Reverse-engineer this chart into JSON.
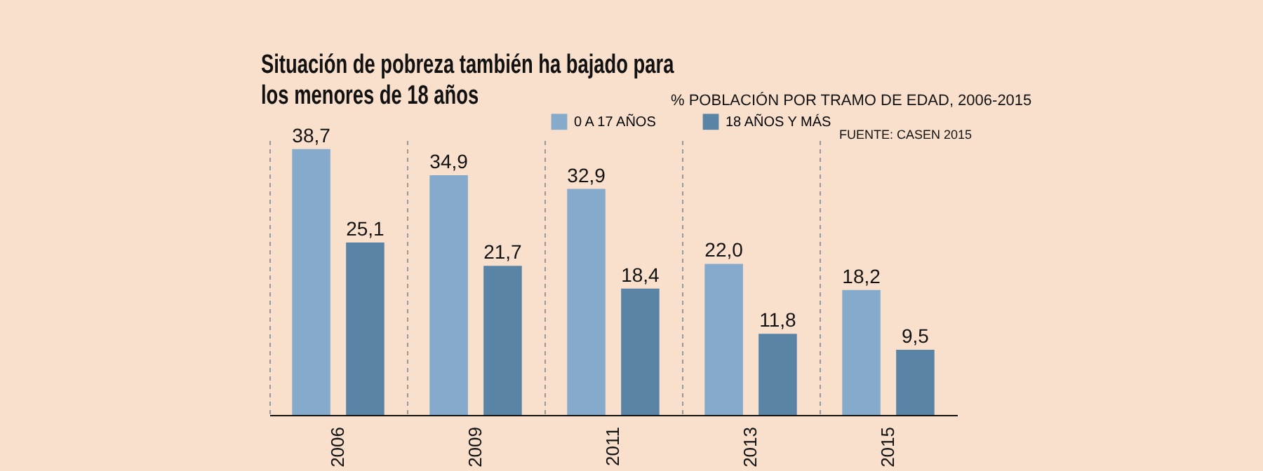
{
  "chart_data": {
    "type": "bar",
    "title": "Situación de pobreza también ha bajado para los menores de 18 años",
    "subtitle": "% POBLACIÓN POR TRAMO DE EDAD, 2006-2015",
    "annotations": [
      "FUENTE: CASEN 2015"
    ],
    "categories": [
      "2006",
      "2009",
      "2011",
      "2013",
      "2015"
    ],
    "series": [
      {
        "name": "0 A 17 AÑOS",
        "color": "#86aacb",
        "values": [
          38.7,
          34.9,
          32.9,
          22.0,
          18.2
        ],
        "value_labels": [
          "38,7",
          "34,9",
          "32,9",
          "22,0",
          "18,2"
        ]
      },
      {
        "name": "18 AÑOS Y MÁS",
        "color": "#5a84a6",
        "values": [
          25.1,
          21.7,
          18.4,
          11.8,
          9.5
        ],
        "value_labels": [
          "25,1",
          "21,7",
          "18,4",
          "11,8",
          "9,5"
        ]
      }
    ],
    "tick_labels": "x",
    "grid": "x",
    "data_labels": true,
    "legend": "top right"
  }
}
